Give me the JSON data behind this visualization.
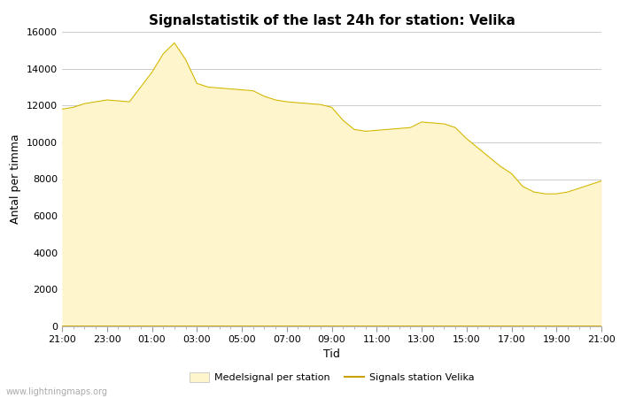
{
  "title": "Signalstatistik of the last 24h for station: Velika",
  "xlabel": "Tid",
  "ylabel": "Antal per timma",
  "watermark": "www.lightningmaps.org",
  "ylim": [
    0,
    16000
  ],
  "yticks": [
    0,
    2000,
    4000,
    6000,
    8000,
    10000,
    12000,
    14000,
    16000
  ],
  "x_labels": [
    "21:00",
    "23:00",
    "01:00",
    "03:00",
    "05:00",
    "07:00",
    "09:00",
    "11:00",
    "13:00",
    "15:00",
    "17:00",
    "19:00",
    "21:00"
  ],
  "fill_color": "#FFF5CC",
  "fill_edge_color": "#D4B800",
  "line_color": "#C8A000",
  "background_color": "#ffffff",
  "grid_color": "#cccccc",
  "title_fontsize": 11,
  "axis_label_fontsize": 9,
  "tick_fontsize": 8,
  "legend_fontsize": 8,
  "hours": [
    0,
    1,
    2,
    3,
    4,
    5,
    6,
    7,
    8,
    9,
    10,
    11,
    12,
    13,
    14,
    15,
    16,
    17,
    18,
    19,
    20,
    21,
    22,
    23,
    24,
    25,
    26,
    27,
    28,
    29,
    30,
    31,
    32,
    33,
    34,
    35,
    36,
    37,
    38,
    39,
    40,
    41,
    42,
    43,
    44,
    45,
    46,
    47,
    48
  ],
  "median_values": [
    11800,
    11900,
    12100,
    12200,
    12300,
    12250,
    12200,
    13000,
    13800,
    14800,
    15400,
    14500,
    13200,
    13000,
    12950,
    12900,
    12850,
    12800,
    12500,
    12300,
    12200,
    12150,
    12100,
    12050,
    11900,
    11200,
    10700,
    10600,
    10650,
    10700,
    10750,
    10800,
    11100,
    11050,
    11000,
    10800,
    10200,
    9700,
    9200,
    8700,
    8300,
    7600,
    7300,
    7200,
    7200,
    7300,
    7500,
    7700,
    7900
  ],
  "signal_values": [
    0,
    0,
    0,
    0,
    0,
    0,
    0,
    0,
    0,
    0,
    0,
    0,
    0,
    0,
    0,
    0,
    0,
    0,
    0,
    0,
    0,
    0,
    0,
    0,
    0,
    0,
    0,
    0,
    0,
    0,
    0,
    0,
    0,
    0,
    0,
    0,
    0,
    0,
    0,
    0,
    0,
    0,
    0,
    0,
    0,
    0,
    0,
    0,
    0
  ]
}
